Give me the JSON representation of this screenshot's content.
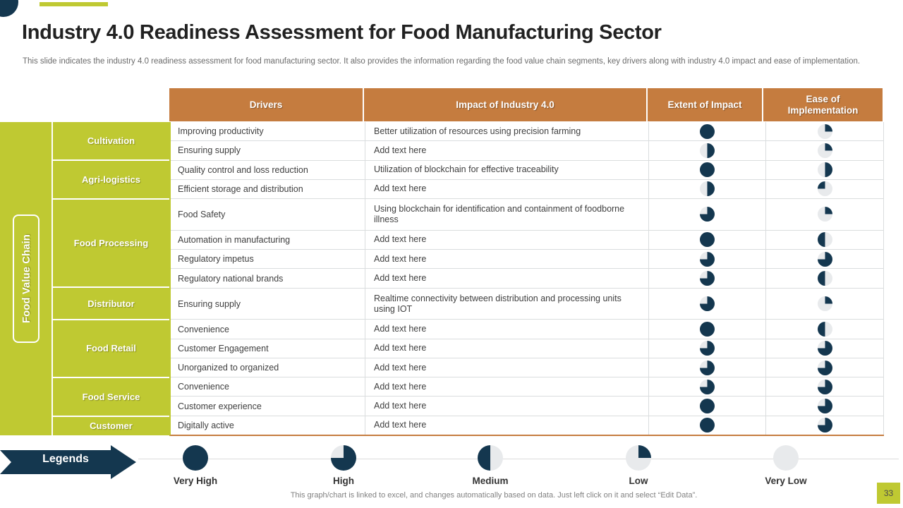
{
  "slide": {
    "title": "Industry 4.0 Readiness Assessment for Food Manufacturing Sector",
    "subtitle": "This slide indicates the industry 4.0 readiness assessment for food manufacturing sector. It also provides the information regarding the food value chain segments, key drivers along with industry 4.0 impact and ease of implementation.",
    "footer": "This graph/chart is linked to excel, and changes automatically based on data. Just left click on it and select “Edit Data”.",
    "page_number": "33"
  },
  "colors": {
    "navy": "#14374F",
    "orange": "#C57C3F",
    "green": "#BFC932",
    "pie_light": "#E8EAEC"
  },
  "table": {
    "side_label": "Food Value Chain",
    "headers": [
      "Drivers",
      "Impact of Industry 4.0",
      "Extent of Impact",
      "Ease of Implementation"
    ],
    "groups": [
      {
        "label": "Cultivation",
        "row_count": 2
      },
      {
        "label": "Agri-logistics",
        "row_count": 2
      },
      {
        "label": "Food Processing",
        "row_count": 4
      },
      {
        "label": "Distributor",
        "row_count": 1
      },
      {
        "label": "Food Retail",
        "row_count": 3
      },
      {
        "label": "Food Service",
        "row_count": 2
      },
      {
        "label": "Customer",
        "row_count": 1
      }
    ],
    "rows": [
      {
        "driver": "Improving productivity",
        "impact": "Better utilization of resources using precision farming",
        "extent": "full",
        "ease": "quarter_tr",
        "tall": false
      },
      {
        "driver": "Ensuring supply",
        "impact": "Add text here",
        "extent": "half_right",
        "ease": "quarter_tr",
        "tall": false
      },
      {
        "driver": "Quality control and loss reduction",
        "impact": "Utilization of blockchain for effective traceability",
        "extent": "full",
        "ease": "half_right",
        "tall": false
      },
      {
        "driver": "Efficient storage and distribution",
        "impact": "Add text here",
        "extent": "half_right",
        "ease": "quarter_tl",
        "tall": false
      },
      {
        "driver": "Food Safety",
        "impact": "Using blockchain for identification and containment of foodborne illness",
        "extent": "three_quarter",
        "ease": "quarter_tr",
        "tall": true
      },
      {
        "driver": "Automation in manufacturing",
        "impact": "Add text here",
        "extent": "full",
        "ease": "half_left",
        "tall": false
      },
      {
        "driver": "Regulatory impetus",
        "impact": "Add text here",
        "extent": "three_quarter",
        "ease": "three_quarter",
        "tall": false
      },
      {
        "driver": "Regulatory national brands",
        "impact": "Add text here",
        "extent": "three_quarter",
        "ease": "half_left",
        "tall": false
      },
      {
        "driver": "Ensuring supply",
        "impact": "Realtime connectivity between distribution and processing units using IOT",
        "extent": "three_quarter",
        "ease": "quarter_tr",
        "tall": true
      },
      {
        "driver": "Convenience",
        "impact": "Add text here",
        "extent": "full",
        "ease": "half_left",
        "tall": false
      },
      {
        "driver": "Customer Engagement",
        "impact": "Add text here",
        "extent": "three_quarter",
        "ease": "three_quarter",
        "tall": false
      },
      {
        "driver": "Unorganized to organized",
        "impact": "Add text here",
        "extent": "three_quarter",
        "ease": "three_quarter",
        "tall": false
      },
      {
        "driver": "Convenience",
        "impact": "Add text here",
        "extent": "three_quarter",
        "ease": "three_quarter",
        "tall": false
      },
      {
        "driver": "Customer experience",
        "impact": "Add text here",
        "extent": "full",
        "ease": "three_quarter",
        "tall": false
      },
      {
        "driver": "Digitally active",
        "impact": "Add text here",
        "extent": "full",
        "ease": "three_quarter",
        "tall": false
      }
    ]
  },
  "legend": {
    "title": "Legends",
    "items": [
      {
        "label": "Very High",
        "icon": "full"
      },
      {
        "label": "High",
        "icon": "three_quarter"
      },
      {
        "label": "Medium",
        "icon": "half_left"
      },
      {
        "label": "Low",
        "icon": "quarter_tr"
      },
      {
        "label": "Very Low",
        "icon": "empty"
      }
    ]
  }
}
